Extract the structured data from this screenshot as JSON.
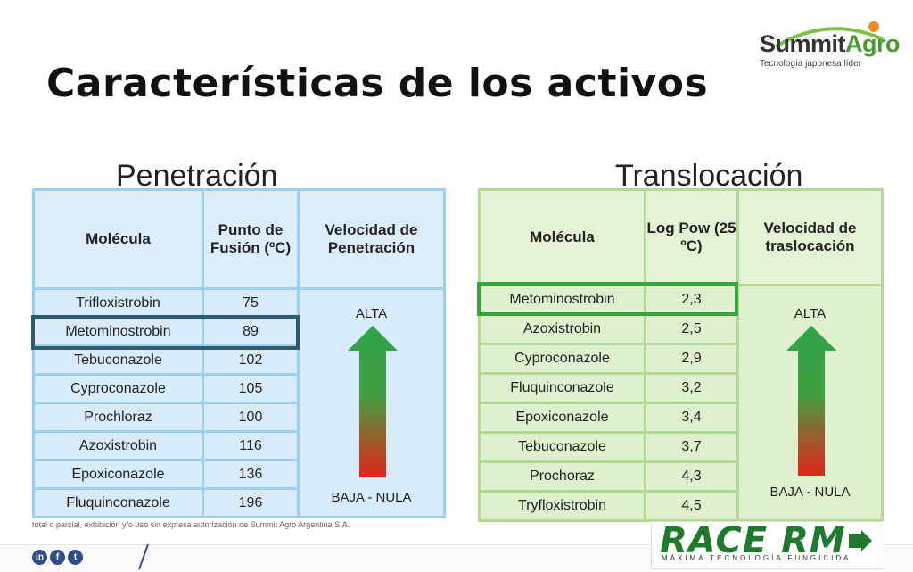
{
  "title": "Características de los activos",
  "logo": {
    "word_a": "Summit",
    "word_b": "Agro",
    "tagline": "Tecnología japonesa líder"
  },
  "penetracion": {
    "heading": "Penetración",
    "headers": [
      "Molécula",
      "Punto de Fusión  (ºC)",
      "Velocidad de Penetración"
    ],
    "rows": [
      {
        "molecule": "Trifloxistrobin",
        "value": "75"
      },
      {
        "molecule": "Metominostrobin",
        "value": "89"
      },
      {
        "molecule": "Tebuconazole",
        "value": "102"
      },
      {
        "molecule": "Cyproconazole",
        "value": "105"
      },
      {
        "molecule": "Prochloraz",
        "value": "100"
      },
      {
        "molecule": "Azoxistrobin",
        "value": "116"
      },
      {
        "molecule": "Epoxiconazole",
        "value": "136"
      },
      {
        "molecule": "Fluquinconazole",
        "value": "196"
      }
    ],
    "high_label": "ALTA",
    "low_label": "BAJA - NULA",
    "highlight_color": "#2e5b6e"
  },
  "translocacion": {
    "heading": "Translocación",
    "headers": [
      "Molécula",
      "Log Pow (25 ºC)",
      "Velocidad de traslocación"
    ],
    "rows": [
      {
        "molecule": "Metominostrobin",
        "value": "2,3"
      },
      {
        "molecule": "Azoxistrobin",
        "value": "2,5"
      },
      {
        "molecule": "Cyproconazole",
        "value": "2,9"
      },
      {
        "molecule": "Fluquinconazole",
        "value": "3,2"
      },
      {
        "molecule": "Epoxiconazole",
        "value": "3,4"
      },
      {
        "molecule": "Tebuconazole",
        "value": "3,7"
      },
      {
        "molecule": "Prochoraz",
        "value": "4,3"
      },
      {
        "molecule": "Tryfloxistrobin",
        "value": "4,5"
      }
    ],
    "high_label": "ALTA",
    "low_label": "BAJA - NULA",
    "highlight_color": "#3aa53a"
  },
  "footer": {
    "legal": "total o parcial, exhibición y/o uso sin expresa autorización de Summit Agro Argentina S.A.",
    "race_logo": "RACE RM",
    "race_tagline": "MÁXIMA TECNOLOGÍA FUNGICIDA",
    "social": [
      "in",
      "f",
      "t"
    ]
  },
  "colors": {
    "arrow_top": "#2fa44a",
    "arrow_bottom": "#e3241b",
    "race_green": "#1f7a2e"
  }
}
